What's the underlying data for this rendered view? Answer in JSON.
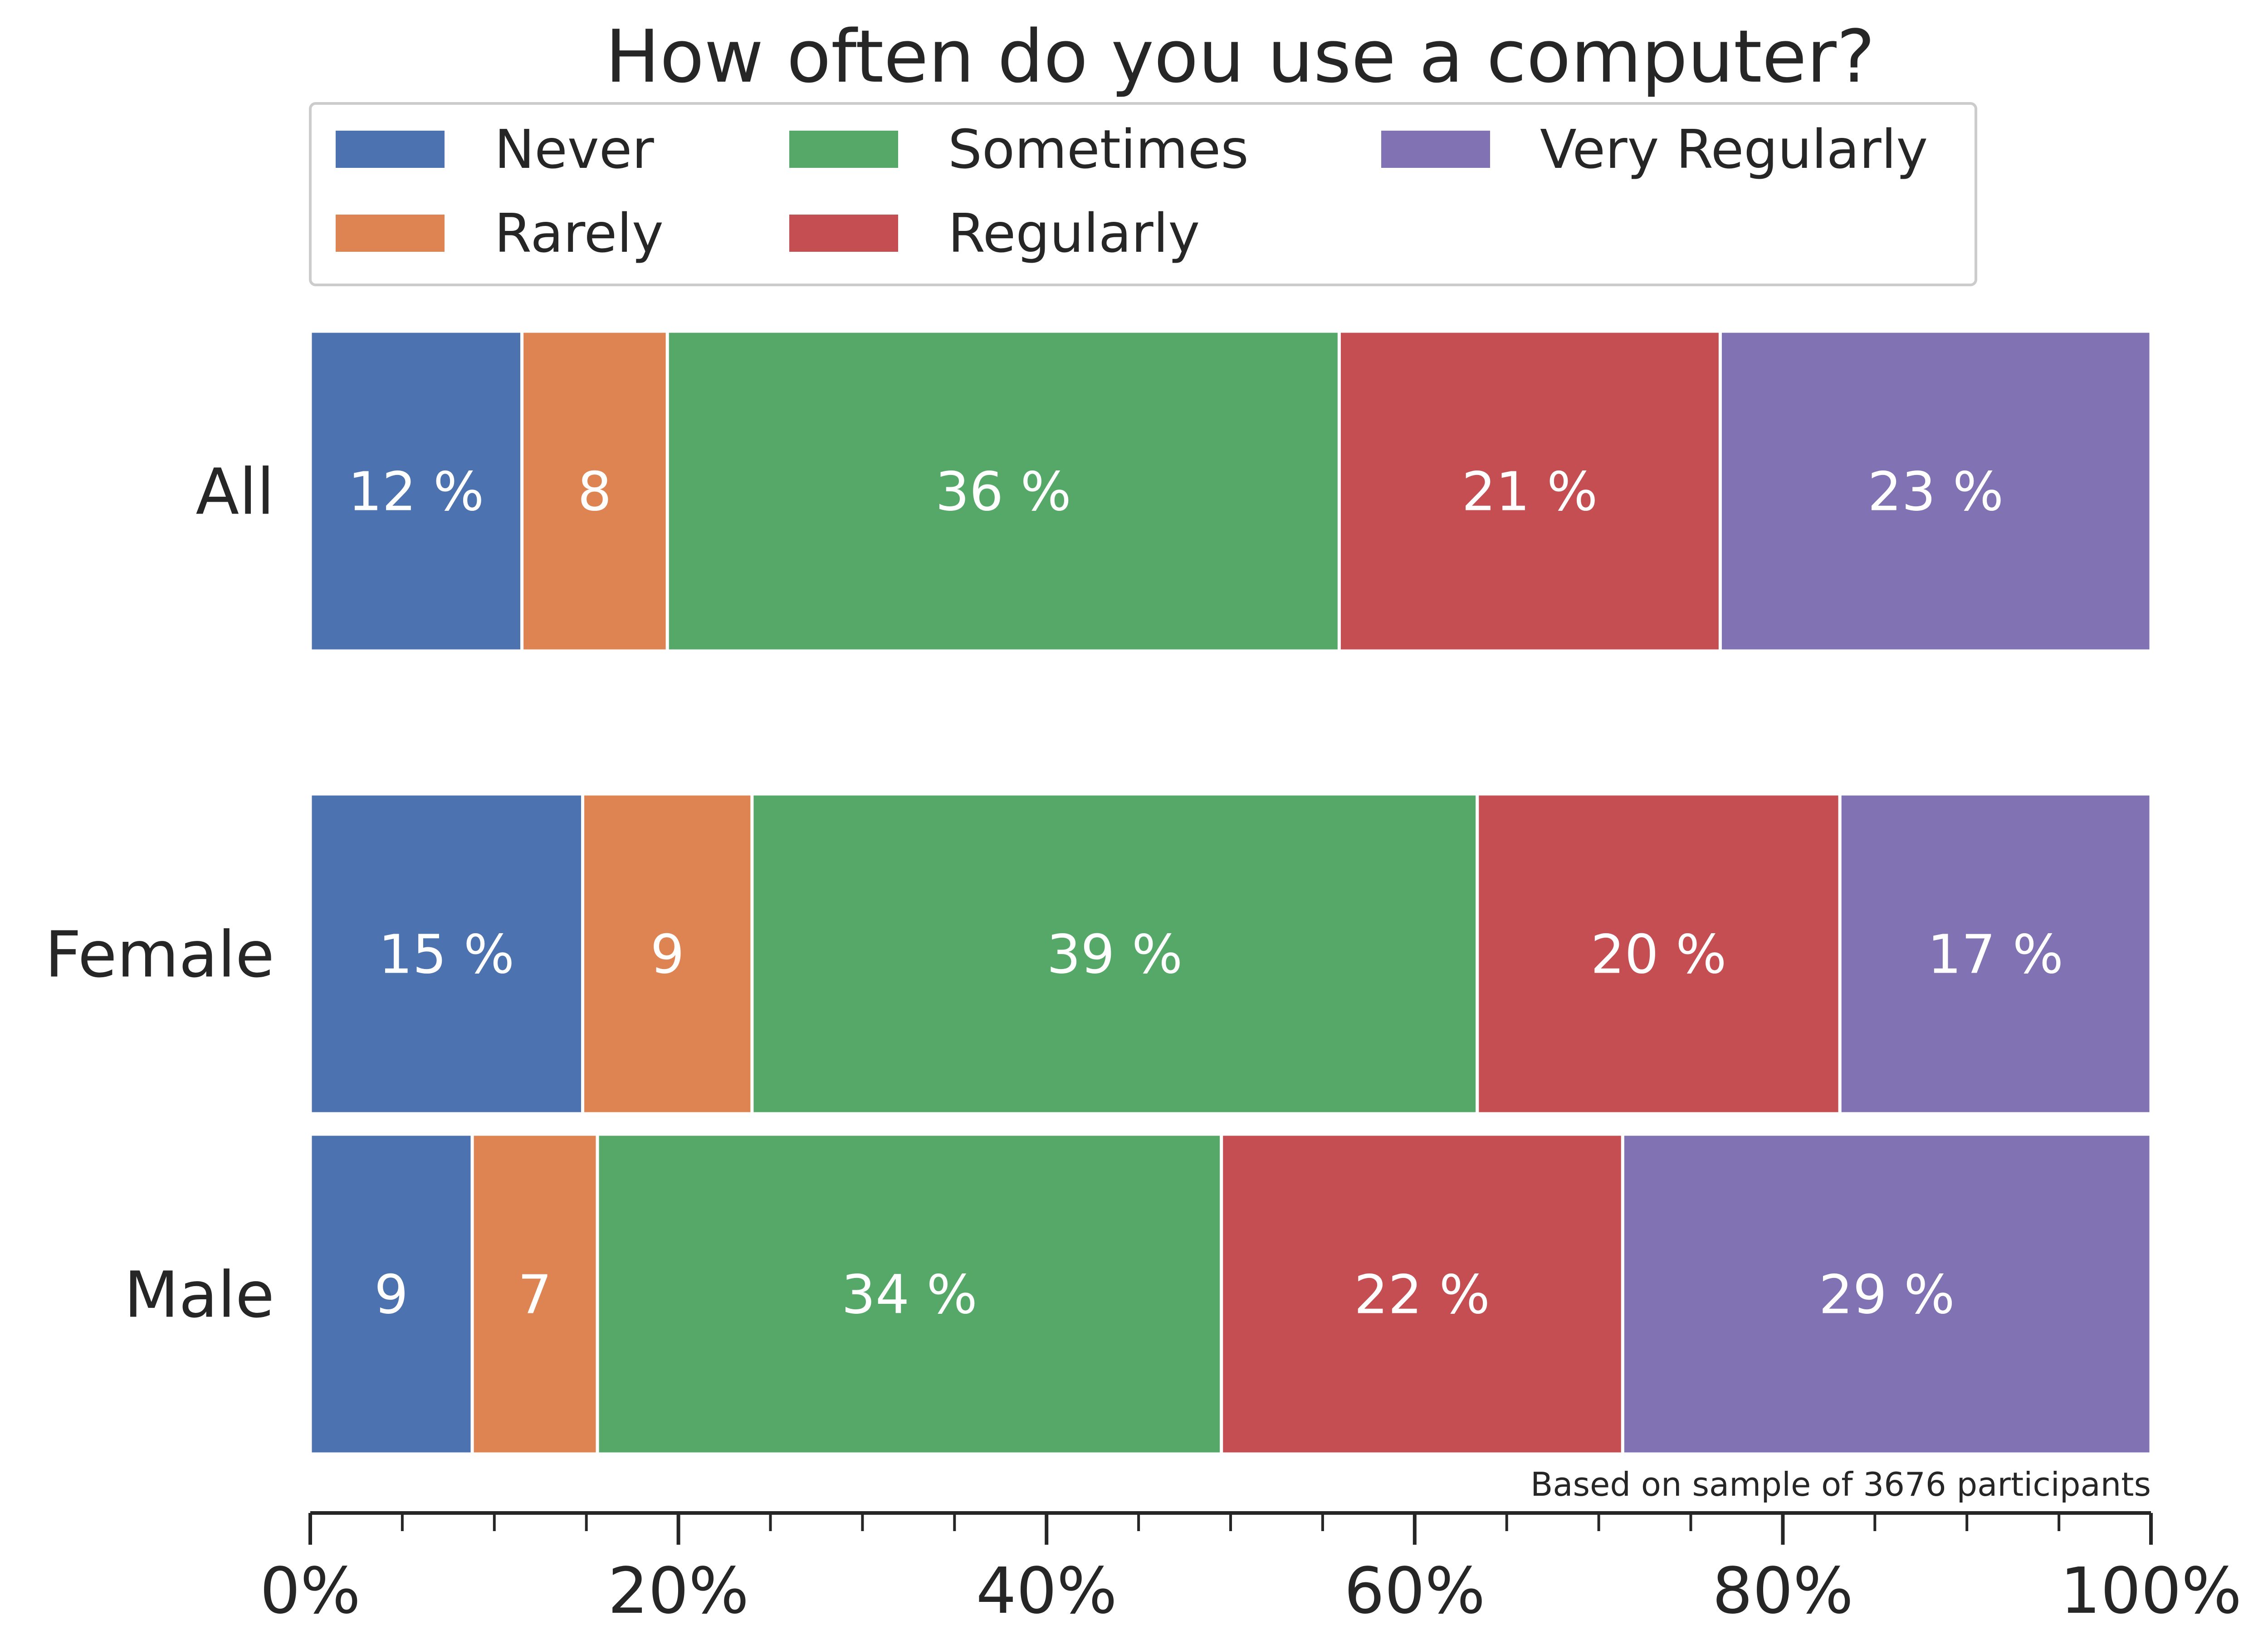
{
  "chart_data": {
    "type": "bar",
    "orientation": "horizontal",
    "stacked": true,
    "normalized_percent": true,
    "title": "How often do you use a computer?",
    "categories": [
      "All",
      "Female",
      "Male"
    ],
    "series": [
      {
        "name": "Never",
        "color": "#4c72b0",
        "values": [
          11.5,
          14.8,
          8.8
        ],
        "labels": [
          "12 %",
          "15 %",
          "9"
        ]
      },
      {
        "name": "Rarely",
        "color": "#dd8452",
        "values": [
          7.9,
          9.2,
          6.8
        ],
        "labels": [
          "8",
          "9",
          "7"
        ]
      },
      {
        "name": "Sometimes",
        "color": "#55a868",
        "values": [
          36.5,
          39.4,
          33.9
        ],
        "labels": [
          "36 %",
          "39 %",
          "34 %"
        ]
      },
      {
        "name": "Regularly",
        "color": "#c44e52",
        "values": [
          20.7,
          19.7,
          21.8
        ],
        "labels": [
          "21 %",
          "20 %",
          "22 %"
        ]
      },
      {
        "name": "Very Regularly",
        "color": "#8172b3",
        "values": [
          23.4,
          16.9,
          28.7
        ],
        "labels": [
          "23 %",
          "17 %",
          "29 %"
        ]
      }
    ],
    "xlim": [
      0,
      100
    ],
    "x_ticks": [
      "0%",
      "20%",
      "40%",
      "60%",
      "80%",
      "100%"
    ],
    "xlabel": "",
    "ylabel": "",
    "legend_position": "top",
    "grid": false,
    "annotation": "Based on sample of 3676 participants"
  }
}
